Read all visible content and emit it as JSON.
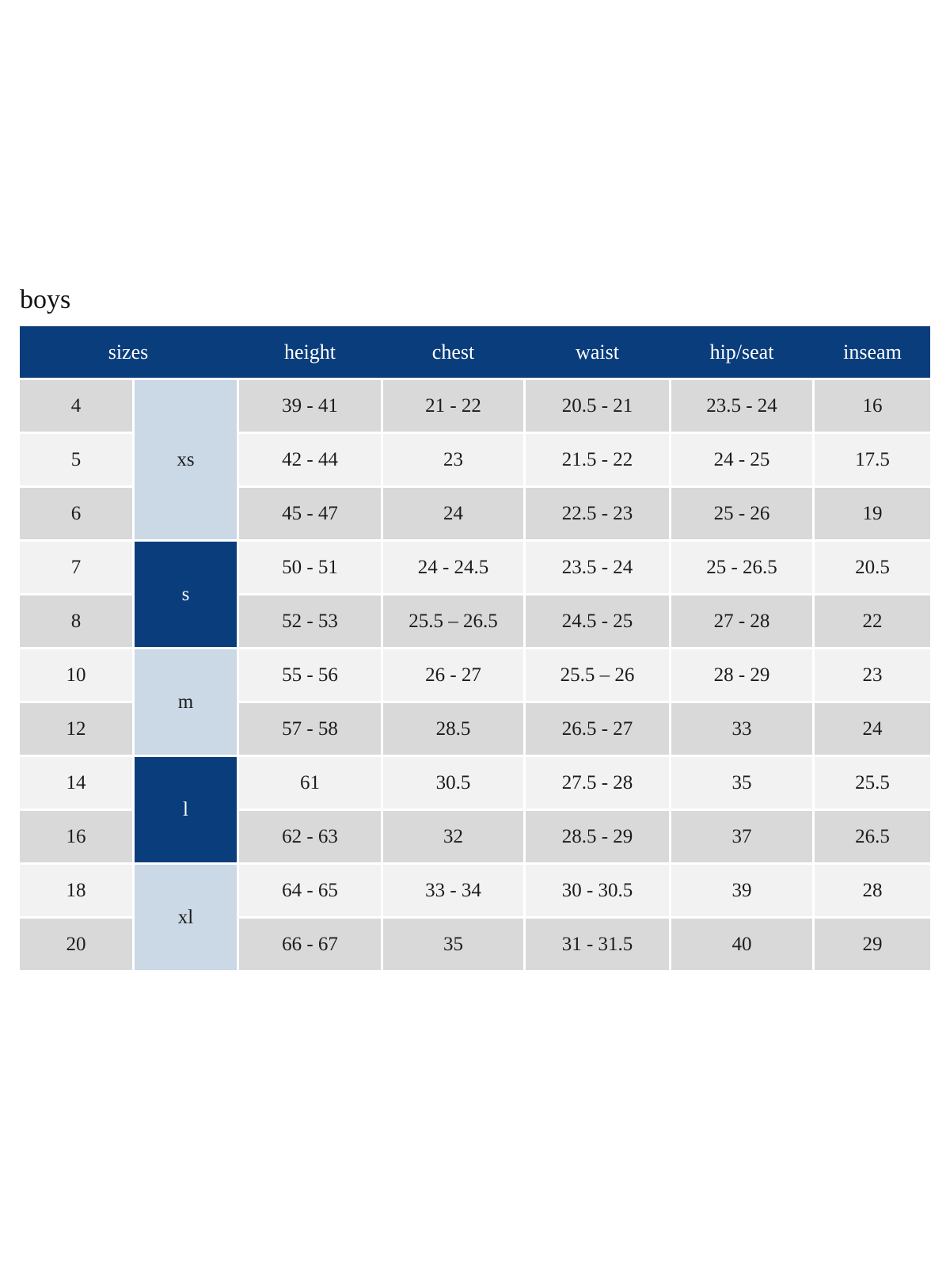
{
  "title": "boys",
  "colors": {
    "header_bg": "#0a3d7c",
    "header_text": "#ffffff",
    "group_light_bg": "#cbd8e6",
    "group_dark_bg": "#0a3d7c",
    "row_dark": "#d9d9d9",
    "row_light": "#f2f2f2",
    "text": "#1c1c1c",
    "page_bg": "#ffffff"
  },
  "table": {
    "columns": [
      "sizes",
      "height",
      "chest",
      "waist",
      "hip/seat",
      "inseam"
    ],
    "size_groups": [
      {
        "label": "xs",
        "style": "light",
        "rows": 3
      },
      {
        "label": "s",
        "style": "dark",
        "rows": 2
      },
      {
        "label": "m",
        "style": "light",
        "rows": 2
      },
      {
        "label": "l",
        "style": "dark",
        "rows": 2
      },
      {
        "label": "xl",
        "style": "light",
        "rows": 2
      }
    ],
    "rows": [
      {
        "size": "4",
        "height": "39 - 41",
        "chest": "21 - 22",
        "waist": "20.5 - 21",
        "hip_seat": "23.5 - 24",
        "inseam": "16"
      },
      {
        "size": "5",
        "height": "42 - 44",
        "chest": "23",
        "waist": "21.5 - 22",
        "hip_seat": "24 - 25",
        "inseam": "17.5"
      },
      {
        "size": "6",
        "height": "45 - 47",
        "chest": "24",
        "waist": "22.5 - 23",
        "hip_seat": "25 - 26",
        "inseam": "19"
      },
      {
        "size": "7",
        "height": "50 - 51",
        "chest": "24 - 24.5",
        "waist": "23.5 - 24",
        "hip_seat": "25 - 26.5",
        "inseam": "20.5"
      },
      {
        "size": "8",
        "height": "52 - 53",
        "chest": "25.5 – 26.5",
        "waist": "24.5 - 25",
        "hip_seat": "27 - 28",
        "inseam": "22"
      },
      {
        "size": "10",
        "height": "55 - 56",
        "chest": "26 - 27",
        "waist": "25.5 – 26",
        "hip_seat": "28 - 29",
        "inseam": "23"
      },
      {
        "size": "12",
        "height": "57 - 58",
        "chest": "28.5",
        "waist": "26.5 - 27",
        "hip_seat": "33",
        "inseam": "24"
      },
      {
        "size": "14",
        "height": "61",
        "chest": "30.5",
        "waist": "27.5 - 28",
        "hip_seat": "35",
        "inseam": "25.5"
      },
      {
        "size": "16",
        "height": "62 - 63",
        "chest": "32",
        "waist": "28.5 - 29",
        "hip_seat": "37",
        "inseam": "26.5"
      },
      {
        "size": "18",
        "height": "64 - 65",
        "chest": "33 - 34",
        "waist": "30 - 30.5",
        "hip_seat": "39",
        "inseam": "28"
      },
      {
        "size": "20",
        "height": "66 - 67",
        "chest": "35",
        "waist": "31 - 31.5",
        "hip_seat": "40",
        "inseam": "29"
      }
    ]
  }
}
